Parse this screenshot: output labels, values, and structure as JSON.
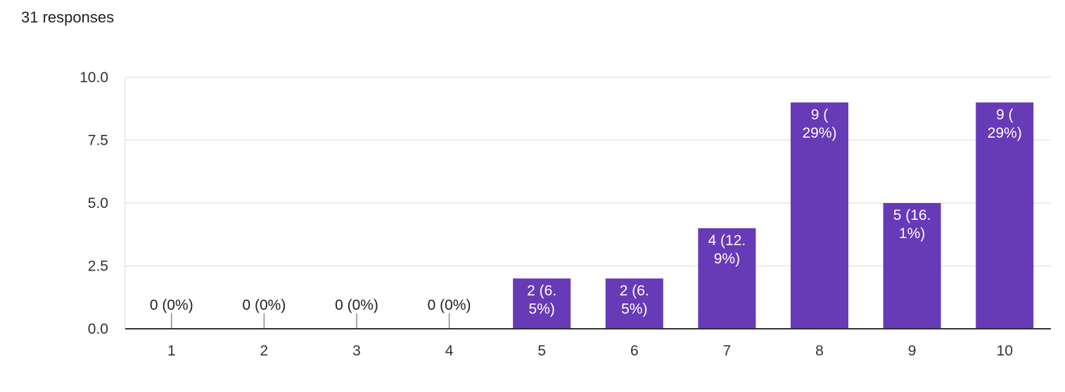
{
  "header": {
    "response_count": "31 responses"
  },
  "colors": {
    "bar": "#673ab7",
    "grid": "#e6e6e6",
    "axis": "#333333",
    "label_inside": "#ffffff",
    "label_outside": "#202124"
  },
  "chart_data": {
    "type": "bar",
    "categories": [
      "1",
      "2",
      "3",
      "4",
      "5",
      "6",
      "7",
      "8",
      "9",
      "10"
    ],
    "values": [
      0,
      0,
      0,
      0,
      2,
      2,
      4,
      9,
      5,
      9
    ],
    "data_labels": [
      [
        "0 (0%)"
      ],
      [
        "0 (0%)"
      ],
      [
        "0 (0%)"
      ],
      [
        "0 (0%)"
      ],
      [
        "2 (6.",
        "5%)"
      ],
      [
        "2 (6.",
        "5%)"
      ],
      [
        "4 (12.",
        "9%)"
      ],
      [
        "9 (",
        "29%)"
      ],
      [
        "5 (16.",
        "1%)"
      ],
      [
        "9 (",
        "29%)"
      ]
    ],
    "y_ticks": [
      "0.0",
      "2.5",
      "5.0",
      "7.5",
      "10.0"
    ],
    "ylim": [
      0,
      10
    ],
    "grid": true,
    "legend": "none"
  }
}
